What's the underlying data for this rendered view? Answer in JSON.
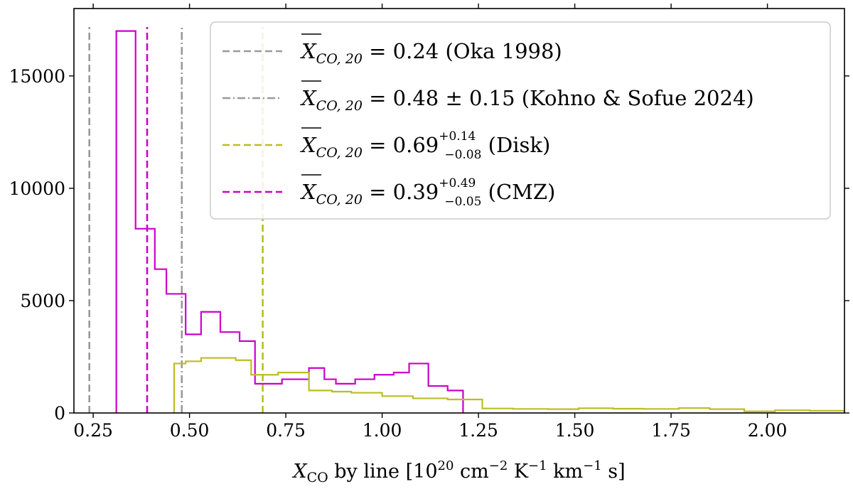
{
  "chart_data": {
    "type": "histogram",
    "title": "",
    "xlabel": {
      "symbol": "X",
      "subscript": "CO",
      "text": " by line [10",
      "exp1": "20",
      "unit1": " cm",
      "exp2": "−2",
      "unit2": " K",
      "exp3": "−1",
      "unit3": " km",
      "exp4": "−1",
      "unit4": " s]"
    },
    "ylabel": "",
    "xlim": [
      0.2,
      2.2
    ],
    "ylim": [
      0,
      18000
    ],
    "x_ticks": [
      0.25,
      0.5,
      0.75,
      1.0,
      1.25,
      1.5,
      1.75,
      2.0
    ],
    "x_tick_labels": [
      "0.25",
      "0.50",
      "0.75",
      "1.00",
      "1.25",
      "1.50",
      "1.75",
      "2.00"
    ],
    "y_ticks": [
      0,
      5000,
      10000,
      15000
    ],
    "y_tick_labels": [
      "0",
      "5000",
      "10000",
      "15000"
    ],
    "series": [
      {
        "name": "CMZ",
        "color": "#cc00cc",
        "edges": [
          0.31,
          0.36,
          0.41,
          0.44,
          0.49,
          0.53,
          0.58,
          0.63,
          0.67,
          0.74,
          0.81,
          0.85,
          0.88,
          0.93,
          0.98,
          1.03,
          1.07,
          1.12,
          1.17,
          1.21
        ],
        "counts": [
          17000,
          8200,
          6400,
          5300,
          3500,
          4500,
          3600,
          3200,
          1300,
          1500,
          2000,
          1500,
          1300,
          1500,
          1700,
          1800,
          2200,
          1200,
          1000
        ]
      },
      {
        "name": "Disk",
        "color": "#bcbd22",
        "edges": [
          0.46,
          0.49,
          0.53,
          0.62,
          0.66,
          0.73,
          0.81,
          0.87,
          0.92,
          1.0,
          1.08,
          1.17,
          1.26,
          1.34,
          1.43,
          1.51,
          1.6,
          1.68,
          1.77,
          1.85,
          1.94,
          2.02,
          2.11,
          2.2
        ],
        "counts": [
          2200,
          2300,
          2450,
          2350,
          1700,
          1800,
          1000,
          950,
          900,
          750,
          650,
          600,
          200,
          180,
          170,
          210,
          190,
          180,
          220,
          170,
          70,
          120,
          100
        ]
      }
    ],
    "reference_lines": [
      {
        "name": "Oka 1998",
        "x": 0.24,
        "color": "#999999",
        "style": "dashed",
        "label_main": "X",
        "label_sub": "CO, 20",
        "label_value": " = 0.24 (Oka 1998)",
        "label_sup": "",
        "label_inf": "",
        "label_tail": ""
      },
      {
        "name": "Kohno & Sofue 2024",
        "x": 0.48,
        "color": "#999999",
        "style": "dashdot",
        "label_main": "X",
        "label_sub": "CO, 20",
        "label_value": " = 0.48 ± 0.15 (Kohno & Sofue 2024)",
        "label_sup": "",
        "label_inf": "",
        "label_tail": ""
      },
      {
        "name": "Disk",
        "x": 0.69,
        "color": "#bcbd22",
        "style": "dashed",
        "label_main": "X",
        "label_sub": "CO, 20",
        "label_value": " = 0.69",
        "label_sup": "+0.14",
        "label_inf": "−0.08",
        "label_tail": " (Disk)"
      },
      {
        "name": "CMZ",
        "x": 0.39,
        "color": "#cc00cc",
        "style": "dashed",
        "label_main": "X",
        "label_sub": "CO, 20",
        "label_value": " = 0.39",
        "label_sup": "+0.49",
        "label_inf": "−0.05",
        "label_tail": " (CMZ)"
      }
    ],
    "legend_position": "top-right",
    "grid": false
  }
}
